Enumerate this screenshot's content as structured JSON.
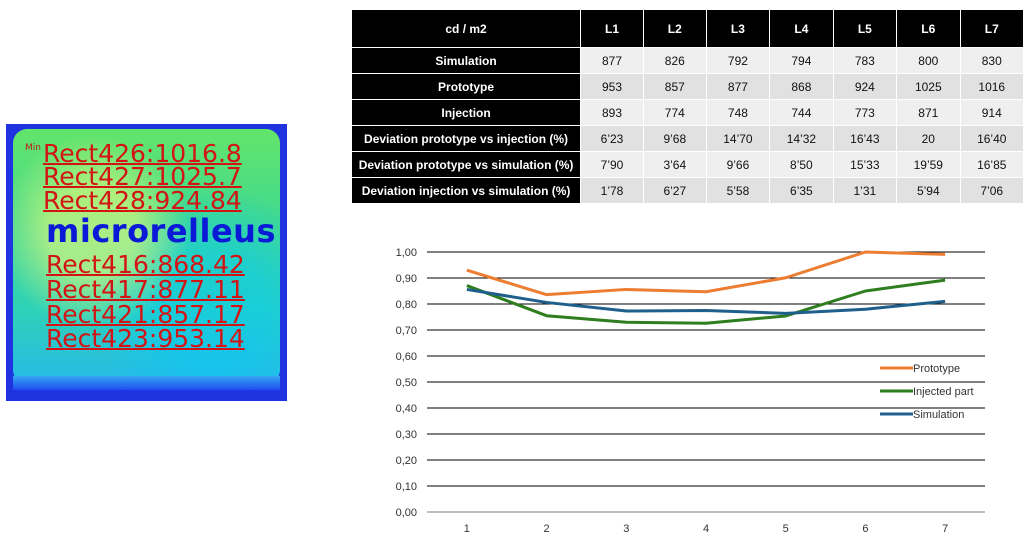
{
  "luminance_map": {
    "rect_labels": [
      "Rect426:1016.8",
      "Rect427:1025.7",
      "Rect428:924.84",
      "Rect416:868.42",
      "Rect417:877.11",
      "Rect421:857.17",
      "Rect423:953.14"
    ],
    "min_label": "Min",
    "brand": "microrelleus"
  },
  "table": {
    "corner": "cd / m2",
    "columns": [
      "L1",
      "L2",
      "L3",
      "L4",
      "L5",
      "L6",
      "L7"
    ],
    "rows": [
      {
        "label": "Simulation",
        "values": [
          "877",
          "826",
          "792",
          "794",
          "783",
          "800",
          "830"
        ]
      },
      {
        "label": "Prototype",
        "values": [
          "953",
          "857",
          "877",
          "868",
          "924",
          "1025",
          "1016"
        ]
      },
      {
        "label": "Injection",
        "values": [
          "893",
          "774",
          "748",
          "744",
          "773",
          "871",
          "914"
        ]
      },
      {
        "label": "Deviation prototype vs injection (%)",
        "values": [
          "6’23",
          "9’68",
          "14’70",
          "14’32",
          "16’43",
          "20",
          "16’40"
        ]
      },
      {
        "label": "Deviation prototype vs simulation (%)",
        "values": [
          "7’90",
          "3’64",
          "9’66",
          "8’50",
          "15’33",
          "19’59",
          "16’85"
        ]
      },
      {
        "label": "Deviation injection vs simulation (%)",
        "values": [
          "1’78",
          "6’27",
          "5’58",
          "6’35",
          "1’31",
          "5’94",
          "7’06"
        ]
      }
    ]
  },
  "chart_data": {
    "type": "line",
    "x": [
      1,
      2,
      3,
      4,
      5,
      6,
      7
    ],
    "ylim": [
      0,
      1
    ],
    "yticks": [
      "0,00",
      "0,10",
      "0,20",
      "0,30",
      "0,40",
      "0,50",
      "0,60",
      "0,70",
      "0,80",
      "0,90",
      "1,00"
    ],
    "xticks": [
      "1",
      "2",
      "3",
      "4",
      "5",
      "6",
      "7"
    ],
    "grid": true,
    "legend_position": "right",
    "series": [
      {
        "name": "Prototype",
        "color": "#ed7d31",
        "values": [
          0.93,
          0.836,
          0.856,
          0.847,
          0.901,
          1.0,
          0.991
        ]
      },
      {
        "name": "Injected part",
        "color": "#2e7d1f",
        "values": [
          0.871,
          0.755,
          0.73,
          0.726,
          0.754,
          0.85,
          0.892
        ]
      },
      {
        "name": "Simulation",
        "color": "#1f5f8b",
        "values": [
          0.856,
          0.806,
          0.773,
          0.775,
          0.764,
          0.78,
          0.81
        ]
      }
    ]
  }
}
